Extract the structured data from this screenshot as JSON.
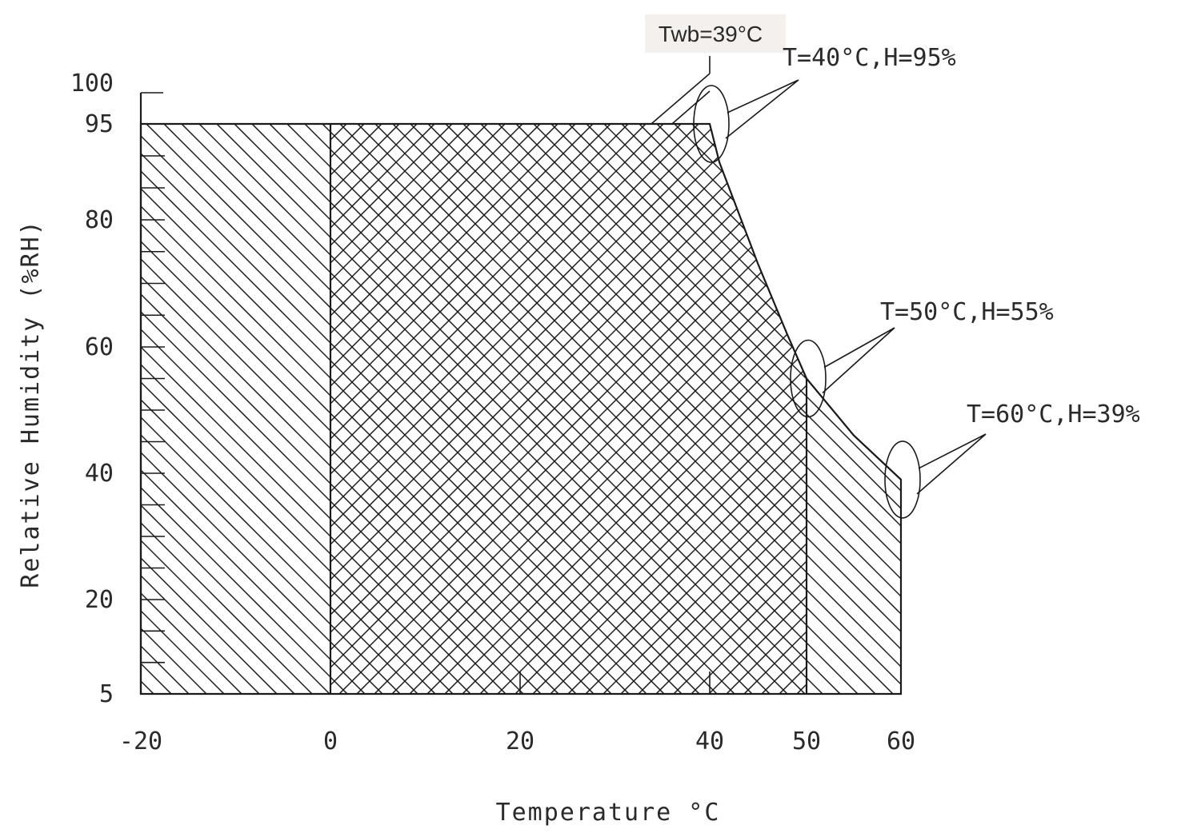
{
  "chart_data": {
    "type": "area",
    "xlabel": "Temperature °C",
    "ylabel": "Relative Humidity (%RH)",
    "x_ticks": [
      "-20",
      "0",
      "20",
      "40",
      "50",
      "60"
    ],
    "y_ticks": [
      "5",
      "20",
      "40",
      "60",
      "80",
      "95",
      "100"
    ],
    "xlim": [
      -20,
      60
    ],
    "ylim": [
      5,
      100
    ],
    "boundary": [
      {
        "x": -20,
        "y": 5
      },
      {
        "x": -20,
        "y": 95
      },
      {
        "x": 40,
        "y": 95
      },
      {
        "x": 41,
        "y": 89
      },
      {
        "x": 45,
        "y": 73
      },
      {
        "x": 48,
        "y": 62
      },
      {
        "x": 50,
        "y": 55
      },
      {
        "x": 55,
        "y": 46
      },
      {
        "x": 60,
        "y": 39
      },
      {
        "x": 60,
        "y": 5
      }
    ],
    "regions": [
      {
        "hatch": "single",
        "x_range": [
          -20,
          0
        ]
      },
      {
        "hatch": "cross",
        "x_range": [
          0,
          50
        ]
      },
      {
        "hatch": "single",
        "x_range": [
          50,
          60
        ]
      }
    ],
    "wet_bulb_line": {
      "label": "Twb=39°C",
      "points": [
        {
          "x": 34,
          "y": 95
        },
        {
          "x": 40,
          "y": 103
        }
      ]
    },
    "annotations": [
      {
        "text": "T=40°C,H=95%",
        "x": 40,
        "y": 95
      },
      {
        "text": "T=50°C,H=55%",
        "x": 50,
        "y": 55
      },
      {
        "text": "T=60°C,H=39%",
        "x": 60,
        "y": 39
      }
    ]
  }
}
